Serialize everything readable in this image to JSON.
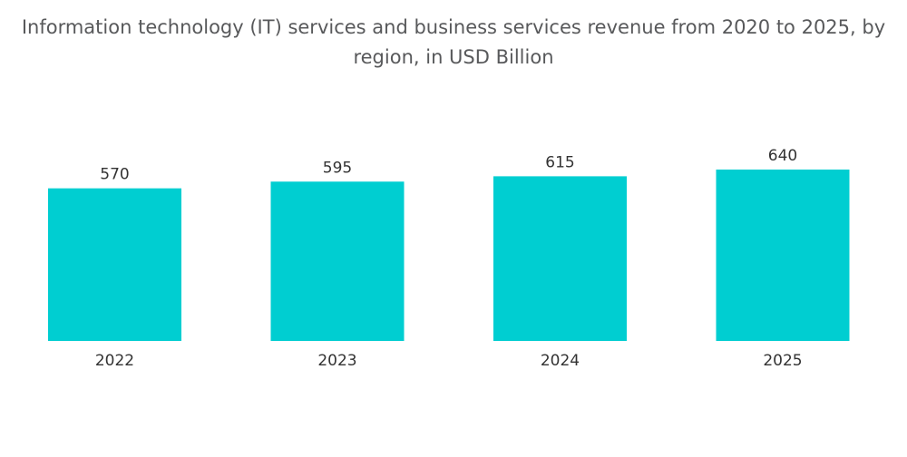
{
  "chart_data": {
    "type": "bar",
    "title": "Information technology (IT) services and business services revenue from 2020 to 2025, by region, in USD Billion",
    "categories": [
      "2022",
      "2023",
      "2024",
      "2025"
    ],
    "values": [
      570,
      595,
      615,
      640
    ],
    "xlabel": "",
    "ylabel": "",
    "ylim": [
      0,
      640
    ],
    "grid": false,
    "legend": "none",
    "bar_color": "#00ced1",
    "text_color": "#333333",
    "title_color": "#58595b"
  }
}
